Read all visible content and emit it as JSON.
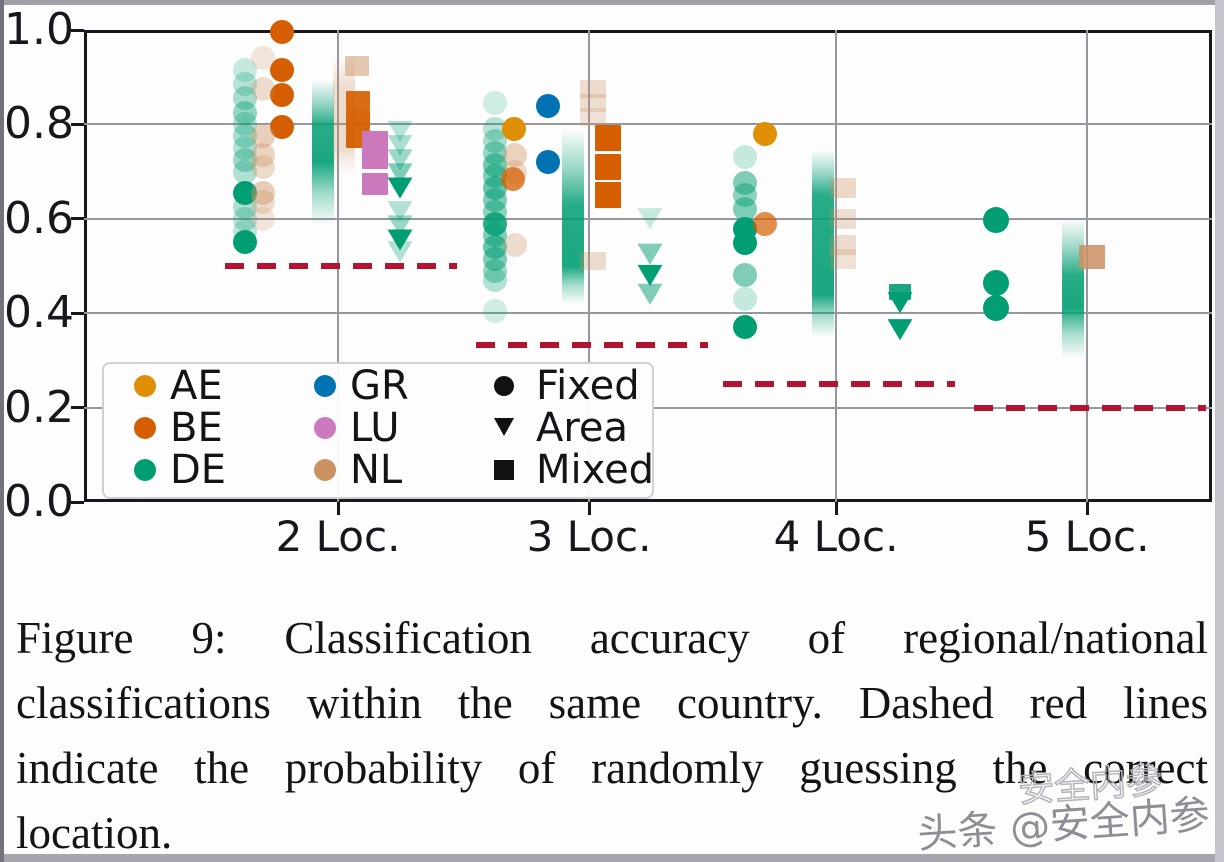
{
  "figure": {
    "caption_lines": [
      "Figure 9:  Classification accuracy of regional/national",
      "classifications within the same country. Dashed red lines",
      "indicate the probability of randomly guessing the correct",
      "location."
    ],
    "watermark": {
      "text": "头条 @安全内参",
      "ghost": "安全内参"
    }
  },
  "chart_data": {
    "type": "scatter",
    "title": "",
    "xlabel": "",
    "ylabel": "",
    "x_categories": [
      "2 Loc.",
      "3 Loc.",
      "4 Loc.",
      "5 Loc."
    ],
    "y_ticks": [
      {
        "label": "1.0",
        "v": 1.0
      },
      {
        "label": "0.8",
        "v": 0.8
      },
      {
        "label": "0.6",
        "v": 0.6
      },
      {
        "label": "0.4",
        "v": 0.4
      },
      {
        "label": "0.2",
        "v": 0.2
      },
      {
        "label": "0.0",
        "v": 0.0
      }
    ],
    "ylim": [
      0,
      1
    ],
    "grid": true,
    "colors": {
      "AE": "#DE8F05",
      "BE": "#D55E00",
      "DE": "#029E73",
      "GR": "#0173B2",
      "LU": "#CC78BC",
      "NL": "#CA9161",
      "chance_line": "#B3132E",
      "legend_marker": "#111111"
    },
    "legend": {
      "country_columns": [
        [
          "AE",
          "BE",
          "DE"
        ],
        [
          "GR",
          "LU",
          "NL"
        ]
      ],
      "marker_entries": [
        {
          "label": "Fixed",
          "shape": "circle"
        },
        {
          "label": "Area",
          "shape": "triangle"
        },
        {
          "label": "Mixed",
          "shape": "square"
        }
      ],
      "position": "lower left"
    },
    "chance_lines": [
      {
        "cat": 0,
        "y": 0.5
      },
      {
        "cat": 1,
        "y": 0.3333
      },
      {
        "cat": 2,
        "y": 0.25
      },
      {
        "cat": 3,
        "y": 0.2
      }
    ],
    "bands_note": "heavily-overplotted translucent Mixed-marker columns [country, cat, dx, y_top, y_bottom, core_top, core_bottom, alpha]",
    "bands": [
      [
        "DE",
        0,
        -15,
        0.895,
        0.585,
        0.8,
        0.72,
        1
      ],
      [
        "NL",
        0,
        6,
        0.95,
        0.69,
        0.88,
        0.75,
        0.35
      ],
      [
        "DE",
        1,
        -16,
        0.79,
        0.42,
        0.63,
        0.5,
        1
      ],
      [
        "DE",
        2,
        -13,
        0.745,
        0.35,
        0.65,
        0.44,
        1
      ],
      [
        "DE",
        3,
        -14,
        0.6,
        0.305,
        0.48,
        0.41,
        1
      ]
    ],
    "points_note": "[country, marker c|t|s, cat, dx_px, accuracy, alpha, w?, h?]",
    "points": [
      [
        "BE",
        "c",
        0,
        -56,
        0.995,
        1
      ],
      [
        "BE",
        "c",
        0,
        -56,
        0.915,
        1
      ],
      [
        "BE",
        "c",
        0,
        -56,
        0.862,
        1
      ],
      [
        "BE",
        "c",
        0,
        -56,
        0.795,
        1
      ],
      [
        "DE",
        "c",
        0,
        -93,
        0.915,
        0.22
      ],
      [
        "DE",
        "c",
        0,
        -93,
        0.885,
        0.28
      ],
      [
        "DE",
        "c",
        0,
        -93,
        0.855,
        0.34
      ],
      [
        "DE",
        "c",
        0,
        -93,
        0.825,
        0.42
      ],
      [
        "DE",
        "c",
        0,
        -93,
        0.8,
        0.3
      ],
      [
        "DE",
        "c",
        0,
        -93,
        0.775,
        0.34
      ],
      [
        "DE",
        "c",
        0,
        -93,
        0.75,
        0.3
      ],
      [
        "DE",
        "c",
        0,
        -93,
        0.725,
        0.38
      ],
      [
        "DE",
        "c",
        0,
        -93,
        0.7,
        0.3
      ],
      [
        "DE",
        "c",
        0,
        -93,
        0.655,
        1
      ],
      [
        "DE",
        "c",
        0,
        -93,
        0.625,
        0.32
      ],
      [
        "DE",
        "c",
        0,
        -93,
        0.6,
        0.28
      ],
      [
        "DE",
        "c",
        0,
        -93,
        0.575,
        0.25
      ],
      [
        "DE",
        "c",
        0,
        -93,
        0.551,
        1
      ],
      [
        "NL",
        "c",
        0,
        -75,
        0.94,
        0.22
      ],
      [
        "NL",
        "c",
        0,
        -75,
        0.875,
        0.3
      ],
      [
        "NL",
        "c",
        0,
        -75,
        0.775,
        0.42
      ],
      [
        "NL",
        "c",
        0,
        -75,
        0.735,
        0.38
      ],
      [
        "NL",
        "c",
        0,
        -75,
        0.71,
        0.32
      ],
      [
        "NL",
        "c",
        0,
        -75,
        0.655,
        0.45
      ],
      [
        "NL",
        "c",
        0,
        -75,
        0.635,
        0.3
      ],
      [
        "NL",
        "c",
        0,
        -75,
        0.6,
        0.22
      ],
      [
        "NL",
        "s",
        0,
        19,
        0.924,
        0.5,
        24,
        20
      ],
      [
        "BE",
        "s",
        0,
        20,
        0.85,
        0.92,
        24,
        19
      ],
      [
        "BE",
        "s",
        0,
        20,
        0.81,
        0.95,
        24,
        19
      ],
      [
        "BE",
        "s",
        0,
        20,
        0.77,
        0.95,
        24,
        19
      ],
      [
        "LU",
        "s",
        0,
        37,
        0.746,
        1,
        26,
        38
      ],
      [
        "LU",
        "s",
        0,
        37,
        0.674,
        1,
        26,
        22
      ],
      [
        "DE",
        "t",
        0,
        62,
        0.785,
        0.28
      ],
      [
        "DE",
        "t",
        0,
        62,
        0.755,
        0.33
      ],
      [
        "DE",
        "t",
        0,
        62,
        0.725,
        0.4
      ],
      [
        "DE",
        "t",
        0,
        62,
        0.695,
        0.5
      ],
      [
        "DE",
        "t",
        0,
        62,
        0.665,
        1
      ],
      [
        "DE",
        "t",
        0,
        62,
        0.615,
        0.3
      ],
      [
        "DE",
        "t",
        0,
        62,
        0.585,
        0.4
      ],
      [
        "DE",
        "t",
        0,
        62,
        0.555,
        1
      ],
      [
        "DE",
        "t",
        0,
        62,
        0.53,
        0.3
      ],
      [
        "DE",
        "c",
        1,
        -94,
        0.845,
        0.18
      ],
      [
        "DE",
        "c",
        1,
        -94,
        0.79,
        0.28
      ],
      [
        "DE",
        "c",
        1,
        -94,
        0.765,
        0.34
      ],
      [
        "DE",
        "c",
        1,
        -94,
        0.74,
        0.42
      ],
      [
        "DE",
        "c",
        1,
        -94,
        0.715,
        0.55
      ],
      [
        "DE",
        "c",
        1,
        -94,
        0.69,
        0.5
      ],
      [
        "DE",
        "c",
        1,
        -94,
        0.665,
        0.6
      ],
      [
        "DE",
        "c",
        1,
        -94,
        0.64,
        0.5
      ],
      [
        "DE",
        "c",
        1,
        -94,
        0.615,
        0.45
      ],
      [
        "DE",
        "c",
        1,
        -94,
        0.59,
        0.85
      ],
      [
        "DE",
        "c",
        1,
        -94,
        0.565,
        0.5
      ],
      [
        "DE",
        "c",
        1,
        -94,
        0.54,
        0.6
      ],
      [
        "DE",
        "c",
        1,
        -94,
        0.515,
        0.5
      ],
      [
        "DE",
        "c",
        1,
        -94,
        0.49,
        0.4
      ],
      [
        "DE",
        "c",
        1,
        -94,
        0.47,
        0.3
      ],
      [
        "DE",
        "c",
        1,
        -94,
        0.405,
        0.18
      ],
      [
        "AE",
        "c",
        1,
        -75,
        0.79,
        1
      ],
      [
        "NL",
        "c",
        1,
        -74,
        0.735,
        0.4
      ],
      [
        "NL",
        "c",
        1,
        -74,
        0.7,
        0.3
      ],
      [
        "NL",
        "c",
        1,
        -74,
        0.545,
        0.3
      ],
      [
        "BE",
        "c",
        1,
        -76,
        0.685,
        0.75
      ],
      [
        "GR",
        "c",
        1,
        -41,
        0.84,
        1
      ],
      [
        "GR",
        "c",
        1,
        -41,
        0.72,
        1
      ],
      [
        "NL",
        "s",
        1,
        4,
        0.875,
        0.3,
        26,
        18
      ],
      [
        "NL",
        "s",
        1,
        4,
        0.845,
        0.28,
        26,
        18
      ],
      [
        "NL",
        "s",
        1,
        4,
        0.815,
        0.25,
        26,
        18
      ],
      [
        "NL",
        "s",
        1,
        4,
        0.51,
        0.3,
        26,
        18
      ],
      [
        "BE",
        "s",
        1,
        19,
        0.771,
        1,
        26,
        26
      ],
      [
        "BE",
        "s",
        1,
        19,
        0.71,
        1,
        26,
        26
      ],
      [
        "BE",
        "s",
        1,
        19,
        0.65,
        1,
        26,
        26
      ],
      [
        "DE",
        "t",
        1,
        61,
        0.6,
        0.22
      ],
      [
        "DE",
        "t",
        1,
        61,
        0.525,
        0.5
      ],
      [
        "DE",
        "t",
        1,
        61,
        0.48,
        1
      ],
      [
        "DE",
        "t",
        1,
        61,
        0.44,
        0.5
      ],
      [
        "AE",
        "c",
        2,
        -71,
        0.78,
        1
      ],
      [
        "DE",
        "c",
        2,
        -91,
        0.73,
        0.22
      ],
      [
        "DE",
        "c",
        2,
        -91,
        0.675,
        0.5
      ],
      [
        "DE",
        "c",
        2,
        -91,
        0.65,
        0.45
      ],
      [
        "DE",
        "c",
        2,
        -91,
        0.62,
        0.5
      ],
      [
        "DE",
        "c",
        2,
        -91,
        0.578,
        1
      ],
      [
        "DE",
        "c",
        2,
        -91,
        0.548,
        1
      ],
      [
        "DE",
        "c",
        2,
        -91,
        0.48,
        0.5
      ],
      [
        "DE",
        "c",
        2,
        -91,
        0.43,
        0.22
      ],
      [
        "DE",
        "c",
        2,
        -91,
        0.37,
        1
      ],
      [
        "BE",
        "c",
        2,
        -71,
        0.59,
        0.7
      ],
      [
        "NL",
        "s",
        2,
        7,
        0.665,
        0.35,
        26,
        20
      ],
      [
        "NL",
        "s",
        2,
        7,
        0.6,
        0.28,
        26,
        20
      ],
      [
        "NL",
        "s",
        2,
        7,
        0.545,
        0.3,
        26,
        20
      ],
      [
        "NL",
        "s",
        2,
        7,
        0.515,
        0.25,
        26,
        20
      ],
      [
        "DE",
        "s",
        2,
        64,
        0.445,
        0.9,
        22,
        16
      ],
      [
        "DE",
        "t",
        2,
        64,
        0.422,
        1
      ],
      [
        "DE",
        "t",
        2,
        64,
        0.365,
        1
      ],
      [
        "DE",
        "c",
        3,
        -91,
        0.597,
        1,
        26
      ],
      [
        "DE",
        "c",
        3,
        -91,
        0.465,
        1,
        26
      ],
      [
        "DE",
        "c",
        3,
        -91,
        0.41,
        1,
        26
      ],
      [
        "NL",
        "s",
        3,
        5,
        0.52,
        0.85,
        26,
        24
      ]
    ]
  }
}
